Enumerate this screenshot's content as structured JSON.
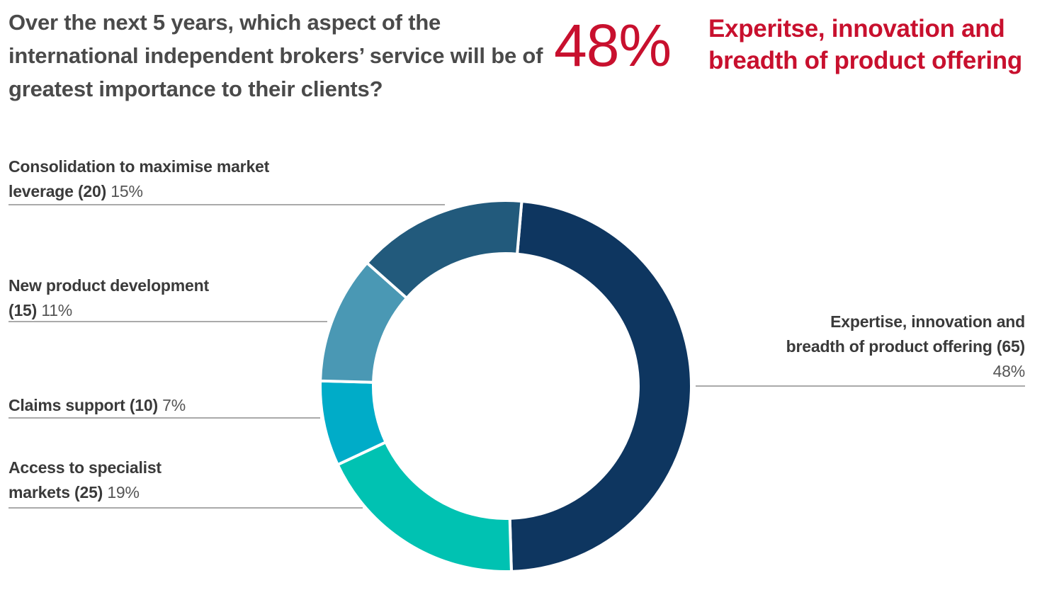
{
  "question": "Over the next 5 years, which aspect of the international independent brokers’ service will be of greatest importance to their clients?",
  "highlight": {
    "percent": "48%",
    "text": "Experitse, innovation and breadth of product offering"
  },
  "colors": {
    "highlight": "#c8102e",
    "leader_line": "#555555"
  },
  "chart_data": {
    "type": "pie",
    "donut": true,
    "slices": [
      {
        "key": "expertise",
        "name": "Expertise, innovation and breadth of product offering",
        "count_label": "(65)",
        "count": 65,
        "percent": 48,
        "percent_label": "48%",
        "color": "#0e3660"
      },
      {
        "key": "access",
        "name": "Access to specialist markets",
        "count_label": "(25)",
        "count": 25,
        "percent": 19,
        "percent_label": "19%",
        "color": "#00c2b2"
      },
      {
        "key": "claims",
        "name": "Claims support",
        "count_label": "(10)",
        "count": 10,
        "percent": 7,
        "percent_label": "7%",
        "color": "#00acc8"
      },
      {
        "key": "newproduct",
        "name": "New product development",
        "count_label": "(15)",
        "count": 15,
        "percent": 11,
        "percent_label": "11%",
        "color": "#4a98b4"
      },
      {
        "key": "consolidation",
        "name": "Consolidation to maximise market leverage",
        "count_label": "(20)",
        "count": 20,
        "percent": 15,
        "percent_label": "15%",
        "color": "#225a7c"
      }
    ]
  }
}
